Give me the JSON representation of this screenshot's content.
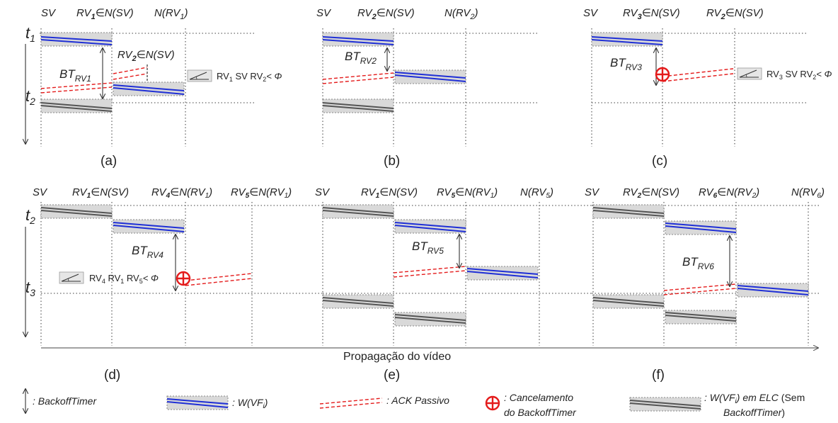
{
  "panels": {
    "a": {
      "caption": "(a)",
      "h1": {
        "base": "SV"
      },
      "h2": {
        "base": "RV",
        "sub": "1",
        "rest": "∈N(SV)"
      },
      "h3": {
        "base": "N(RV",
        "sub": "1",
        "rest": ")"
      },
      "t_top": {
        "base": "t",
        "sub": "1"
      },
      "t_bot": {
        "base": "t",
        "sub": "2"
      },
      "bt": {
        "base": "BT",
        "sub": "RV1"
      },
      "inner": {
        "base": "RV",
        "sub": "2",
        "rest": "∈N(SV)"
      },
      "cmp": {
        "p1": "RV",
        "s1": "1",
        "p2": " SV RV",
        "s2": "2",
        "p3": "< Φ"
      }
    },
    "b": {
      "caption": "(b)",
      "h1": {
        "base": "SV"
      },
      "h2": {
        "base": "RV",
        "sub": "2",
        "rest": "∈N(SV)"
      },
      "h3": {
        "base": "N(RV",
        "sub": "2",
        "rest": ")"
      },
      "bt": {
        "base": "BT",
        "sub": "RV2"
      }
    },
    "c": {
      "caption": "(c)",
      "h1": {
        "base": "SV"
      },
      "h2": {
        "base": "RV",
        "sub": "3",
        "rest": "∈N(SV)"
      },
      "h3": {
        "base": "RV",
        "sub": "2",
        "rest": "∈N(SV)"
      },
      "bt": {
        "base": "BT",
        "sub": "RV3"
      },
      "cmp": {
        "p1": "RV",
        "s1": "3",
        "p2": " SV RV",
        "s2": "2",
        "p3": "< Φ"
      }
    },
    "d": {
      "caption": "(d)",
      "h1": {
        "base": "SV"
      },
      "h2": {
        "base": "RV",
        "sub": "1",
        "rest": "∈N(SV)"
      },
      "h3": {
        "base": "RV",
        "sub": "4",
        "rest": "∈N(RV",
        "sub2": "1",
        "rest2": ")"
      },
      "h4": {
        "base": "RV",
        "sub": "5",
        "rest": "∈N(RV",
        "sub2": "1",
        "rest2": ")"
      },
      "t_top": {
        "base": "t",
        "sub": "2"
      },
      "t_bot": {
        "base": "t",
        "sub": "3"
      },
      "bt": {
        "base": "BT",
        "sub": "RV4"
      },
      "cmp": {
        "p1": "RV",
        "s1": "4",
        "p2": " RV",
        "s2": "1",
        "p3": " RV",
        "s3": "5",
        "p4": "< Φ"
      }
    },
    "e": {
      "caption": "(e)",
      "h1": {
        "base": "SV"
      },
      "h2": {
        "base": "RV",
        "sub": "1",
        "rest": "∈N(SV)"
      },
      "h3": {
        "base": "RV",
        "sub": "5",
        "rest": "∈N(RV",
        "sub2": "1",
        "rest2": ")"
      },
      "h4": {
        "base": "N(RV",
        "sub": "5",
        "rest": ")"
      },
      "bt": {
        "base": "BT",
        "sub": "RV5"
      }
    },
    "f": {
      "caption": "(f)",
      "h1": {
        "base": "SV"
      },
      "h2": {
        "base": "RV",
        "sub": "2",
        "rest": "∈N(SV)"
      },
      "h3": {
        "base": "RV",
        "sub": "6",
        "rest": "∈N(RV",
        "sub2": "2",
        "rest2": ")"
      },
      "h4": {
        "base": "N(RV",
        "sub": "6",
        "rest": ")"
      },
      "bt": {
        "base": "BT",
        "sub": "RV6"
      }
    }
  },
  "axis_label": "Propagação do vídeo",
  "legend": {
    "backoff": ": BackoffTimer",
    "window": {
      "p1": ": W(VF",
      "sub": "i",
      "p2": ")"
    },
    "ack": ": ACK Passivo",
    "cancel": {
      "line1": ": Cancelamento",
      "line2": "do BackoffTimer"
    },
    "elc": {
      "p1": ": W(VF",
      "sub": "i",
      "p2": ") em ELC",
      "p3": " (Sem",
      "line2": "BackoffTimer",
      "p4": ")"
    }
  },
  "colors": {
    "window_line": "#1f2fd6",
    "elc_line": "#555555",
    "ack_line": "#e41b1b",
    "cancel_icon": "#e41b1b",
    "box_fill": "#d9d9d9"
  }
}
